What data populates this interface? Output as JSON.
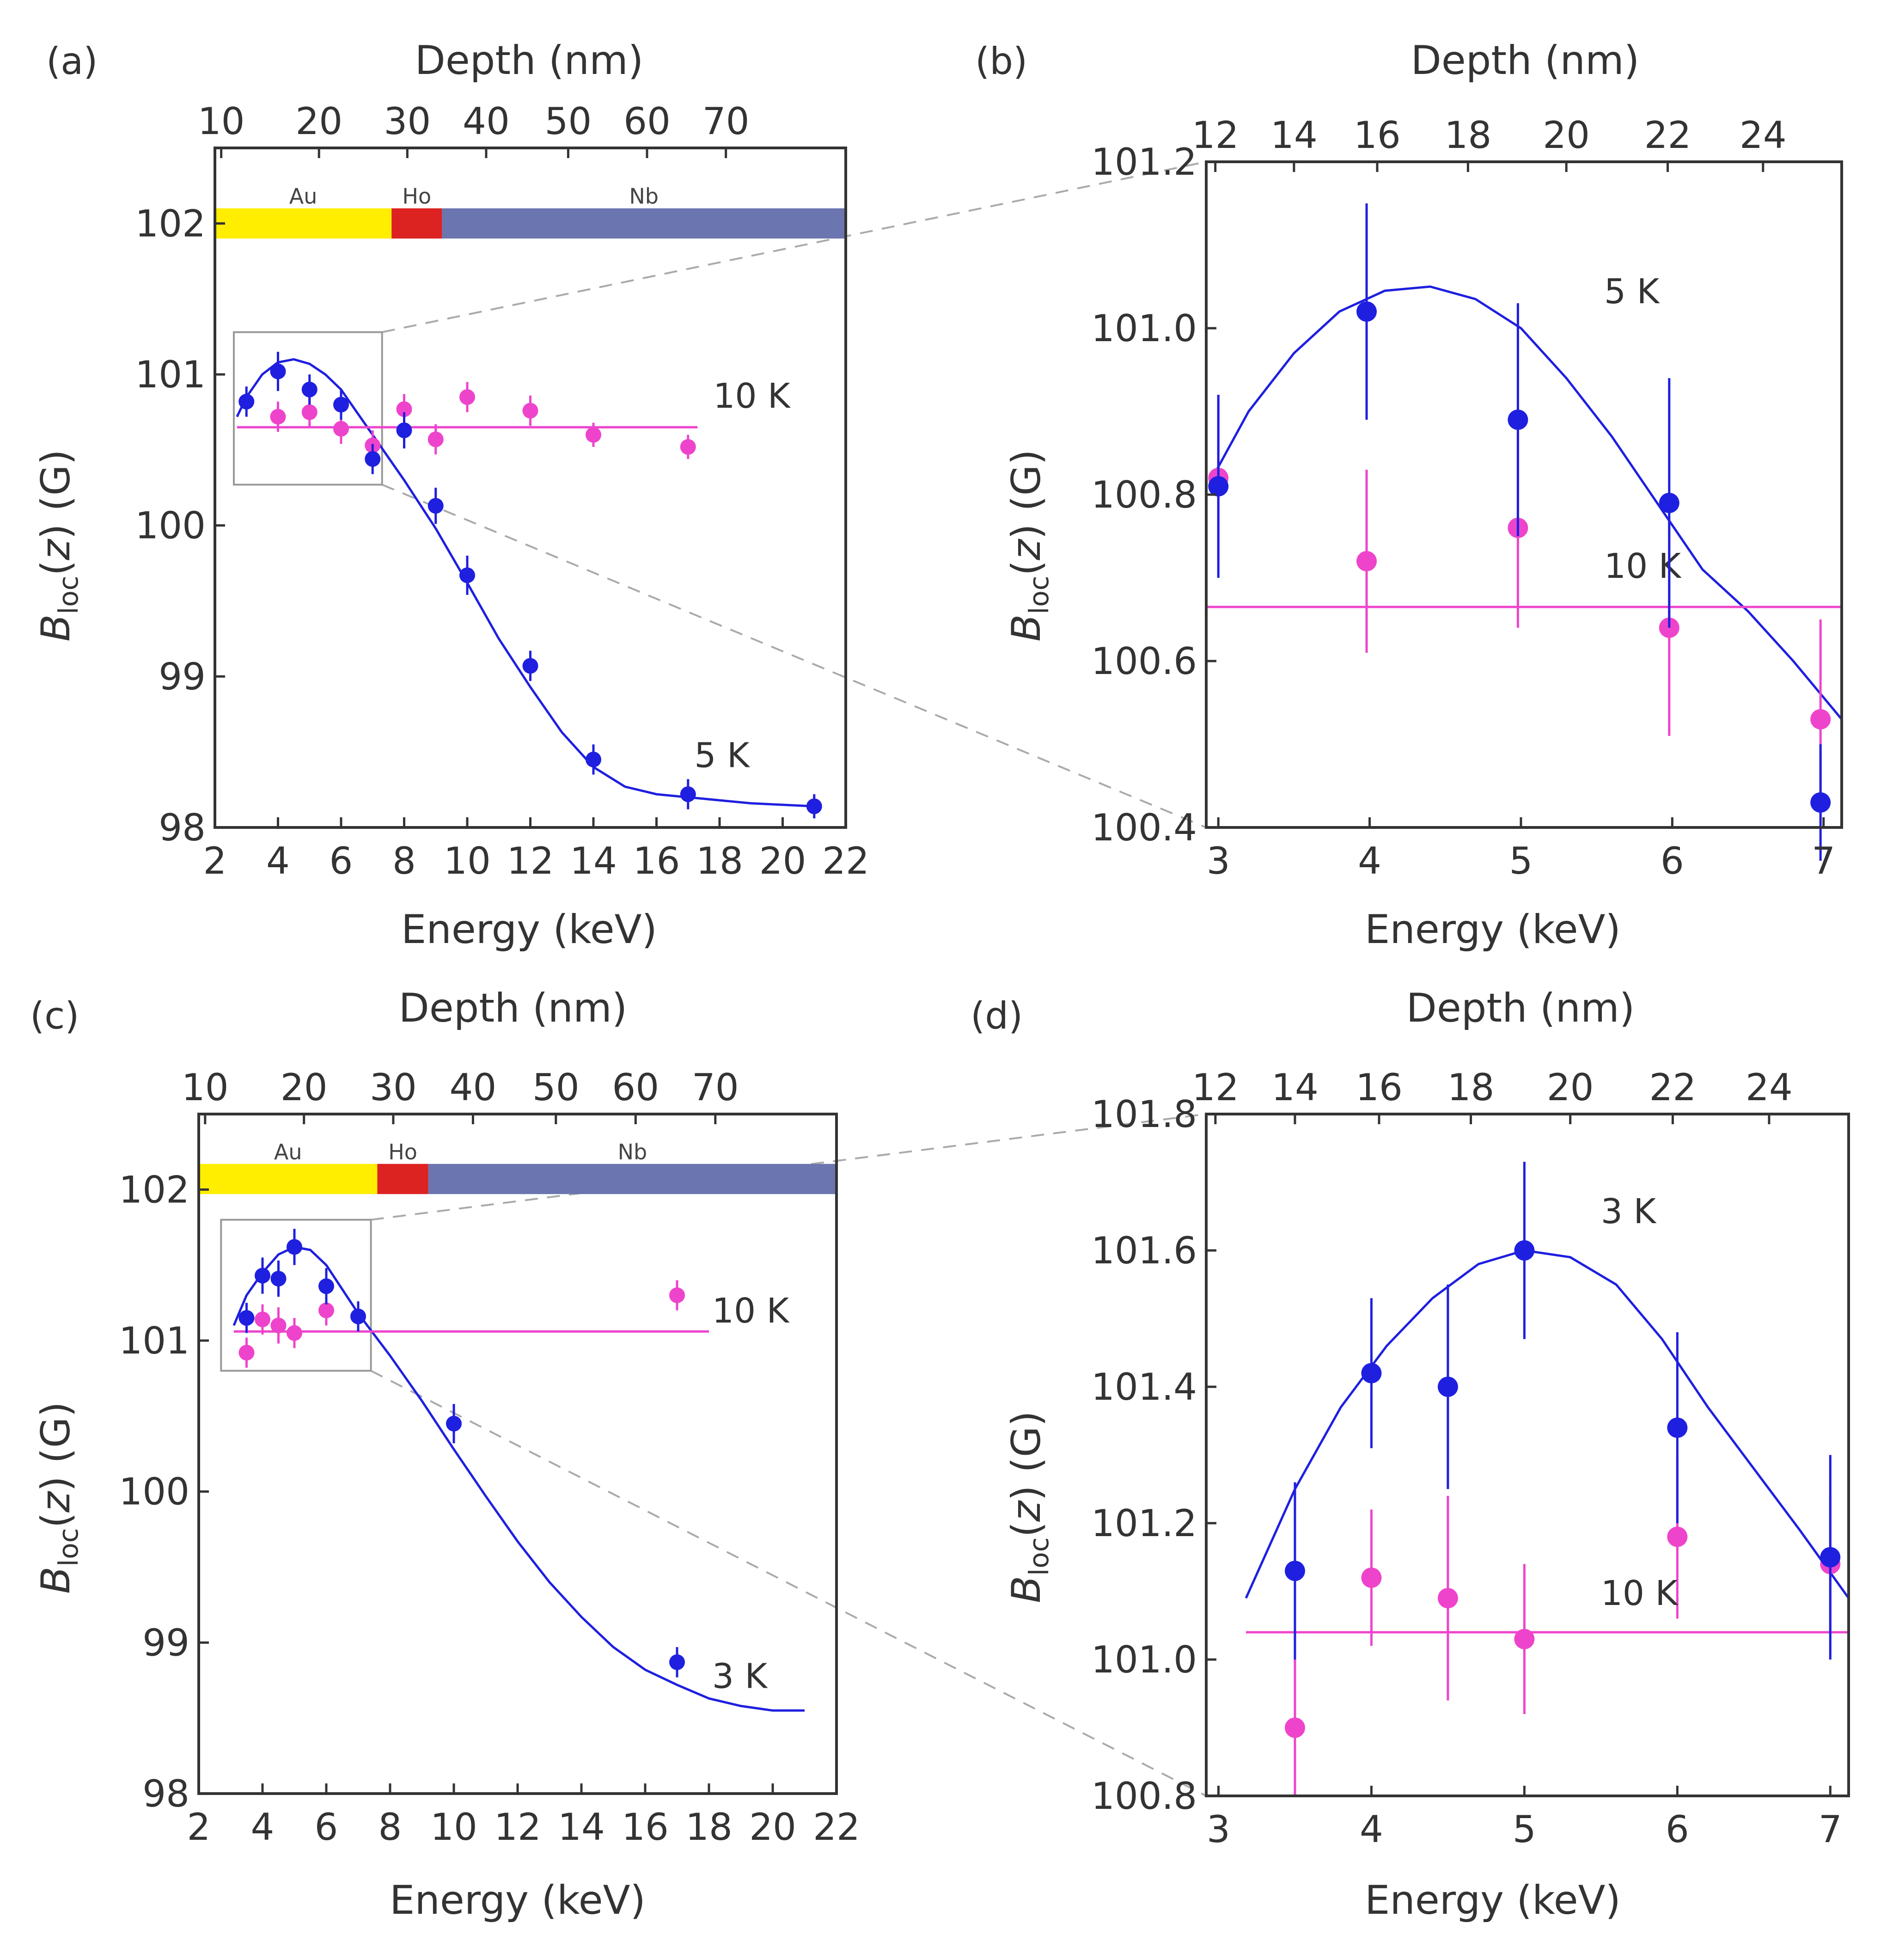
{
  "colors": {
    "blue": "#1f1fe0",
    "magenta": "#ee44cc",
    "au": "#ffee00",
    "ho": "#dd2222",
    "nb": "#6b75b0",
    "zoom": "#aaaaaa"
  },
  "chart_data": [
    {
      "panel": "(a)",
      "type": "scatter",
      "xlabel": "Energy (keV)",
      "ylabel_main": "B",
      "ylabel_sub": "loc",
      "ylabel_arg": "z",
      "ylabel_unit": "(G)",
      "x2label": "Depth (nm)",
      "xlim": [
        2,
        22
      ],
      "ylim": [
        98,
        102.5
      ],
      "xticks": [
        2,
        4,
        6,
        8,
        10,
        12,
        14,
        16,
        18,
        20,
        22
      ],
      "yticks": [
        98,
        99,
        100,
        101,
        102
      ],
      "x2ticks": [
        {
          "label": "10",
          "energy": 2.2
        },
        {
          "label": "20",
          "energy": 5.3
        },
        {
          "label": "30",
          "energy": 8.1
        },
        {
          "label": "40",
          "energy": 10.6
        },
        {
          "label": "50",
          "energy": 13.2
        },
        {
          "label": "60",
          "energy": 15.7
        },
        {
          "label": "70",
          "energy": 18.2
        }
      ],
      "layers": [
        {
          "name": "Au",
          "from": 2,
          "to": 7.6
        },
        {
          "name": "Ho",
          "from": 7.6,
          "to": 9.2
        },
        {
          "name": "Nb",
          "from": 9.2,
          "to": 22
        }
      ],
      "layer_y": [
        101.9,
        102.1
      ],
      "zoom_box": {
        "x": [
          2.6,
          7.3
        ],
        "y": [
          100.27,
          101.28
        ]
      },
      "series": [
        {
          "name": "5 K",
          "color": "blue",
          "points": [
            [
              3,
              100.82,
              0.1
            ],
            [
              4,
              101.02,
              0.13
            ],
            [
              5,
              100.9,
              0.1
            ],
            [
              6,
              100.8,
              0.1
            ],
            [
              7,
              100.44,
              0.1
            ],
            [
              8,
              100.63,
              0.12
            ],
            [
              9,
              100.13,
              0.12
            ],
            [
              10,
              99.67,
              0.13
            ],
            [
              12,
              99.07,
              0.1
            ],
            [
              14,
              98.45,
              0.1
            ],
            [
              17,
              98.22,
              0.1
            ],
            [
              21,
              98.14,
              0.08
            ]
          ],
          "fit": [
            [
              2.7,
              100.72
            ],
            [
              3,
              100.85
            ],
            [
              3.5,
              101.0
            ],
            [
              4,
              101.08
            ],
            [
              4.5,
              101.1
            ],
            [
              5,
              101.07
            ],
            [
              5.5,
              101.0
            ],
            [
              6,
              100.9
            ],
            [
              7,
              100.6
            ],
            [
              8,
              100.3
            ],
            [
              9,
              99.98
            ],
            [
              10,
              99.62
            ],
            [
              11,
              99.25
            ],
            [
              12,
              98.93
            ],
            [
              13,
              98.63
            ],
            [
              14,
              98.4
            ],
            [
              15,
              98.27
            ],
            [
              16,
              98.22
            ],
            [
              17,
              98.2
            ],
            [
              18,
              98.18
            ],
            [
              19,
              98.16
            ],
            [
              20,
              98.15
            ],
            [
              21,
              98.14
            ]
          ],
          "label": {
            "text": "5 K",
            "x": 17.2,
            "y": 98.4
          }
        },
        {
          "name": "10 K",
          "color": "magenta",
          "points": [
            [
              4,
              100.72,
              0.1
            ],
            [
              5,
              100.75,
              0.1
            ],
            [
              6,
              100.64,
              0.1
            ],
            [
              7,
              100.53,
              0.1
            ],
            [
              8,
              100.77,
              0.1
            ],
            [
              9,
              100.57,
              0.1
            ],
            [
              10,
              100.85,
              0.1
            ],
            [
              12,
              100.76,
              0.1
            ],
            [
              14,
              100.6,
              0.08
            ],
            [
              17,
              100.52,
              0.08
            ]
          ],
          "fit": [
            [
              2.7,
              100.65
            ],
            [
              17.3,
              100.65
            ]
          ],
          "label": {
            "text": "10 K",
            "x": 17.8,
            "y": 100.78
          }
        }
      ]
    },
    {
      "panel": "(b)",
      "type": "scatter",
      "xlabel": "Energy (keV)",
      "ylabel_main": "B",
      "ylabel_sub": "loc",
      "ylabel_arg": "z",
      "ylabel_unit": "(G)",
      "x2label": "Depth (nm)",
      "xlim": [
        2.92,
        7.12
      ],
      "ylim": [
        100.4,
        101.2
      ],
      "xticks": [
        3,
        4,
        5,
        6,
        7
      ],
      "yticks": [
        100.4,
        100.6,
        100.8,
        101.0,
        101.2
      ],
      "x2ticks": [
        {
          "label": "12",
          "energy": 2.98
        },
        {
          "label": "14",
          "energy": 3.5
        },
        {
          "label": "16",
          "energy": 4.05
        },
        {
          "label": "18",
          "energy": 4.65
        },
        {
          "label": "20",
          "energy": 5.3
        },
        {
          "label": "22",
          "energy": 5.97
        },
        {
          "label": "24",
          "energy": 6.6
        }
      ],
      "series": [
        {
          "name": "5 K",
          "color": "blue",
          "points": [
            [
              3,
              100.81,
              0.11
            ],
            [
              3.98,
              101.02,
              0.13
            ],
            [
              4.98,
              100.89,
              0.14
            ],
            [
              5.98,
              100.79,
              0.15
            ],
            [
              6.98,
              100.43,
              0.07
            ]
          ],
          "fit": [
            [
              2.99,
              100.83
            ],
            [
              3.2,
              100.9
            ],
            [
              3.5,
              100.97
            ],
            [
              3.8,
              101.02
            ],
            [
              4.1,
              101.045
            ],
            [
              4.4,
              101.05
            ],
            [
              4.7,
              101.035
            ],
            [
              5.0,
              101.0
            ],
            [
              5.3,
              100.94
            ],
            [
              5.6,
              100.87
            ],
            [
              5.9,
              100.79
            ],
            [
              6.2,
              100.71
            ],
            [
              6.5,
              100.66
            ],
            [
              6.8,
              100.6
            ],
            [
              7.12,
              100.53
            ]
          ],
          "label": {
            "text": "5 K",
            "x": 5.55,
            "y": 101.03
          }
        },
        {
          "name": "10 K",
          "color": "magenta",
          "points": [
            [
              3,
              100.82,
              0.1
            ],
            [
              3.98,
              100.72,
              0.11
            ],
            [
              4.98,
              100.76,
              0.12
            ],
            [
              5.98,
              100.64,
              0.13
            ],
            [
              6.98,
              100.53,
              0.12
            ]
          ],
          "fit": [
            [
              2.92,
              100.665
            ],
            [
              7.12,
              100.665
            ]
          ],
          "label": {
            "text": "10 K",
            "x": 5.55,
            "y": 100.7
          }
        }
      ]
    },
    {
      "panel": "(c)",
      "type": "scatter",
      "xlabel": "Energy (keV)",
      "ylabel_main": "B",
      "ylabel_sub": "loc",
      "ylabel_arg": "z",
      "ylabel_unit": "(G)",
      "x2label": "Depth (nm)",
      "xlim": [
        2,
        22
      ],
      "ylim": [
        98,
        102.5
      ],
      "xticks": [
        2,
        4,
        6,
        8,
        10,
        12,
        14,
        16,
        18,
        20,
        22
      ],
      "yticks": [
        98,
        99,
        100,
        101,
        102
      ],
      "x2ticks": [
        {
          "label": "10",
          "energy": 2.2
        },
        {
          "label": "20",
          "energy": 5.3
        },
        {
          "label": "30",
          "energy": 8.1
        },
        {
          "label": "40",
          "energy": 10.6
        },
        {
          "label": "50",
          "energy": 13.2
        },
        {
          "label": "60",
          "energy": 15.7
        },
        {
          "label": "70",
          "energy": 18.2
        }
      ],
      "layers": [
        {
          "name": "Au",
          "from": 2,
          "to": 7.6
        },
        {
          "name": "Ho",
          "from": 7.6,
          "to": 9.2
        },
        {
          "name": "Nb",
          "from": 9.2,
          "to": 22
        }
      ],
      "layer_y": [
        101.97,
        102.17
      ],
      "zoom_box": {
        "x": [
          2.7,
          7.4
        ],
        "y": [
          100.8,
          101.8
        ]
      },
      "series": [
        {
          "name": "3 K",
          "color": "blue",
          "points": [
            [
              3.5,
              101.15,
              0.1
            ],
            [
              4,
              101.43,
              0.12
            ],
            [
              4.5,
              101.41,
              0.12
            ],
            [
              5,
              101.62,
              0.12
            ],
            [
              6,
              101.36,
              0.12
            ],
            [
              7,
              101.16,
              0.1
            ],
            [
              10,
              100.45,
              0.13
            ],
            [
              17,
              98.87,
              0.1
            ]
          ],
          "fit": [
            [
              3.1,
              101.1
            ],
            [
              3.5,
              101.3
            ],
            [
              4,
              101.45
            ],
            [
              4.5,
              101.57
            ],
            [
              5,
              101.62
            ],
            [
              5.5,
              101.6
            ],
            [
              6,
              101.5
            ],
            [
              7,
              101.18
            ],
            [
              8,
              100.9
            ],
            [
              9,
              100.6
            ],
            [
              10,
              100.28
            ],
            [
              11,
              99.97
            ],
            [
              12,
              99.67
            ],
            [
              13,
              99.4
            ],
            [
              14,
              99.17
            ],
            [
              15,
              98.97
            ],
            [
              16,
              98.82
            ],
            [
              17,
              98.72
            ],
            [
              18,
              98.63
            ],
            [
              19,
              98.58
            ],
            [
              20,
              98.55
            ],
            [
              21,
              98.55
            ]
          ],
          "label": {
            "text": "3 K",
            "x": 18.1,
            "y": 98.7
          }
        },
        {
          "name": "10 K",
          "color": "magenta",
          "points": [
            [
              3.5,
              100.92,
              0.1
            ],
            [
              4,
              101.14,
              0.1
            ],
            [
              4.5,
              101.1,
              0.12
            ],
            [
              5,
              101.05,
              0.1
            ],
            [
              6,
              101.2,
              0.1
            ],
            [
              17,
              101.3,
              0.1
            ]
          ],
          "fit": [
            [
              3.1,
              101.06
            ],
            [
              18,
              101.06
            ]
          ],
          "label": {
            "text": "10 K",
            "x": 18.1,
            "y": 101.12
          }
        }
      ]
    },
    {
      "panel": "(d)",
      "type": "scatter",
      "xlabel": "Energy (keV)",
      "ylabel_main": "B",
      "ylabel_sub": "loc",
      "ylabel_arg": "z",
      "ylabel_unit": "(G)",
      "x2label": "Depth (nm)",
      "xlim": [
        2.92,
        7.12
      ],
      "ylim": [
        100.8,
        101.8
      ],
      "xticks": [
        3,
        4,
        5,
        6,
        7
      ],
      "yticks": [
        100.8,
        101.0,
        101.2,
        101.4,
        101.6,
        101.8
      ],
      "x2ticks": [
        {
          "label": "12",
          "energy": 2.98
        },
        {
          "label": "14",
          "energy": 3.5
        },
        {
          "label": "16",
          "energy": 4.05
        },
        {
          "label": "18",
          "energy": 4.65
        },
        {
          "label": "20",
          "energy": 5.3
        },
        {
          "label": "22",
          "energy": 5.97
        },
        {
          "label": "24",
          "energy": 6.6
        }
      ],
      "series": [
        {
          "name": "3 K",
          "color": "blue",
          "points": [
            [
              3.5,
              101.13,
              0.13
            ],
            [
              4,
              101.42,
              0.11
            ],
            [
              4.5,
              101.4,
              0.15
            ],
            [
              5,
              101.6,
              0.13
            ],
            [
              6,
              101.34,
              0.14
            ],
            [
              7,
              101.15,
              0.15
            ]
          ],
          "fit": [
            [
              3.18,
              101.09
            ],
            [
              3.5,
              101.25
            ],
            [
              3.8,
              101.37
            ],
            [
              4.1,
              101.46
            ],
            [
              4.4,
              101.53
            ],
            [
              4.7,
              101.58
            ],
            [
              5.0,
              101.6
            ],
            [
              5.3,
              101.59
            ],
            [
              5.6,
              101.55
            ],
            [
              5.9,
              101.47
            ],
            [
              6.2,
              101.37
            ],
            [
              6.5,
              101.28
            ],
            [
              6.8,
              101.19
            ],
            [
              7.12,
              101.09
            ]
          ],
          "label": {
            "text": "3 K",
            "x": 5.5,
            "y": 101.64
          }
        },
        {
          "name": "10 K",
          "color": "magenta",
          "points": [
            [
              3.5,
              100.9,
              0.1
            ],
            [
              4,
              101.12,
              0.1
            ],
            [
              4.5,
              101.09,
              0.15
            ],
            [
              5,
              101.03,
              0.11
            ],
            [
              6,
              101.18,
              0.12
            ],
            [
              7,
              101.14,
              0.1
            ]
          ],
          "fit": [
            [
              3.18,
              101.04
            ],
            [
              7.12,
              101.04
            ]
          ],
          "label": {
            "text": "10 K",
            "x": 5.5,
            "y": 101.08
          }
        }
      ]
    }
  ]
}
